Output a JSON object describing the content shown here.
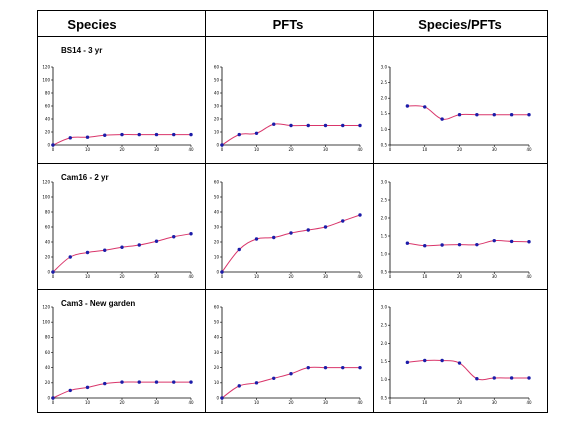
{
  "headers": [
    "Species",
    "PFTs",
    "Species/PFTs"
  ],
  "row_labels": [
    "BS14 - 3 yr",
    "Cam16 - 2 yr",
    "Cam3 - New garden"
  ],
  "colors": {
    "line": "#d9366b",
    "marker": "#1c1ca8",
    "axis": "#000000",
    "border": "#000000"
  },
  "x_ticks": [
    0,
    10,
    20,
    30,
    40
  ],
  "chart_data": [
    {
      "type": "line",
      "row": 0,
      "col": 0,
      "ylim": [
        0,
        120
      ],
      "yticks": [
        0,
        20,
        40,
        60,
        80,
        100,
        120
      ],
      "xlim": [
        0,
        40
      ],
      "x": [
        0,
        5,
        10,
        15,
        20,
        25,
        30,
        35,
        40
      ],
      "values": [
        0,
        11,
        12,
        15,
        16,
        16,
        16,
        16,
        16
      ]
    },
    {
      "type": "line",
      "row": 0,
      "col": 1,
      "ylim": [
        0,
        60
      ],
      "yticks": [
        0,
        10,
        20,
        30,
        40,
        50,
        60
      ],
      "xlim": [
        0,
        40
      ],
      "x": [
        0,
        5,
        10,
        15,
        20,
        25,
        30,
        35,
        40
      ],
      "values": [
        0,
        8,
        9,
        16,
        15,
        15,
        15,
        15,
        15
      ]
    },
    {
      "type": "line",
      "row": 0,
      "col": 2,
      "ylim": [
        0.5,
        3.0
      ],
      "yticks": [
        0.5,
        1.0,
        1.5,
        2.0,
        2.5,
        3.0
      ],
      "xlim": [
        0,
        40
      ],
      "x": [
        5,
        10,
        15,
        20,
        25,
        30,
        35,
        40
      ],
      "values": [
        1.75,
        1.72,
        1.33,
        1.47,
        1.47,
        1.47,
        1.47,
        1.47
      ]
    },
    {
      "type": "line",
      "row": 1,
      "col": 0,
      "ylim": [
        0,
        120
      ],
      "yticks": [
        0,
        20,
        40,
        60,
        80,
        100,
        120
      ],
      "xlim": [
        0,
        40
      ],
      "x": [
        0,
        5,
        10,
        15,
        20,
        25,
        30,
        35,
        40
      ],
      "values": [
        0,
        20,
        26,
        29,
        33,
        36,
        41,
        47,
        51
      ]
    },
    {
      "type": "line",
      "row": 1,
      "col": 1,
      "ylim": [
        0,
        60
      ],
      "yticks": [
        0,
        10,
        20,
        30,
        40,
        50,
        60
      ],
      "xlim": [
        0,
        40
      ],
      "x": [
        0,
        5,
        10,
        15,
        20,
        25,
        30,
        35,
        40
      ],
      "values": [
        0,
        15,
        22,
        23,
        26,
        28,
        30,
        34,
        38
      ]
    },
    {
      "type": "line",
      "row": 1,
      "col": 2,
      "ylim": [
        0.5,
        3.0
      ],
      "yticks": [
        0.5,
        1.0,
        1.5,
        2.0,
        2.5,
        3.0
      ],
      "xlim": [
        0,
        40
      ],
      "x": [
        5,
        10,
        15,
        20,
        25,
        30,
        35,
        40
      ],
      "values": [
        1.3,
        1.23,
        1.25,
        1.26,
        1.26,
        1.37,
        1.35,
        1.34
      ]
    },
    {
      "type": "line",
      "row": 2,
      "col": 0,
      "ylim": [
        0,
        120
      ],
      "yticks": [
        0,
        20,
        40,
        60,
        80,
        100,
        120
      ],
      "xlim": [
        0,
        40
      ],
      "x": [
        0,
        5,
        10,
        15,
        20,
        25,
        30,
        35,
        40
      ],
      "values": [
        0,
        10,
        14,
        19,
        21,
        21,
        21,
        21,
        21
      ]
    },
    {
      "type": "line",
      "row": 2,
      "col": 1,
      "ylim": [
        0,
        60
      ],
      "yticks": [
        0,
        10,
        20,
        30,
        40,
        50,
        60
      ],
      "xlim": [
        0,
        40
      ],
      "x": [
        0,
        5,
        10,
        15,
        20,
        25,
        30,
        35,
        40
      ],
      "values": [
        0,
        8,
        10,
        13,
        16,
        20,
        20,
        20,
        20
      ]
    },
    {
      "type": "line",
      "row": 2,
      "col": 2,
      "ylim": [
        0.5,
        3.0
      ],
      "yticks": [
        0.5,
        1.0,
        1.5,
        2.0,
        2.5,
        3.0
      ],
      "xlim": [
        0,
        40
      ],
      "x": [
        5,
        10,
        15,
        20,
        25,
        30,
        35,
        40
      ],
      "values": [
        1.48,
        1.53,
        1.53,
        1.46,
        1.03,
        1.05,
        1.05,
        1.05
      ]
    }
  ]
}
